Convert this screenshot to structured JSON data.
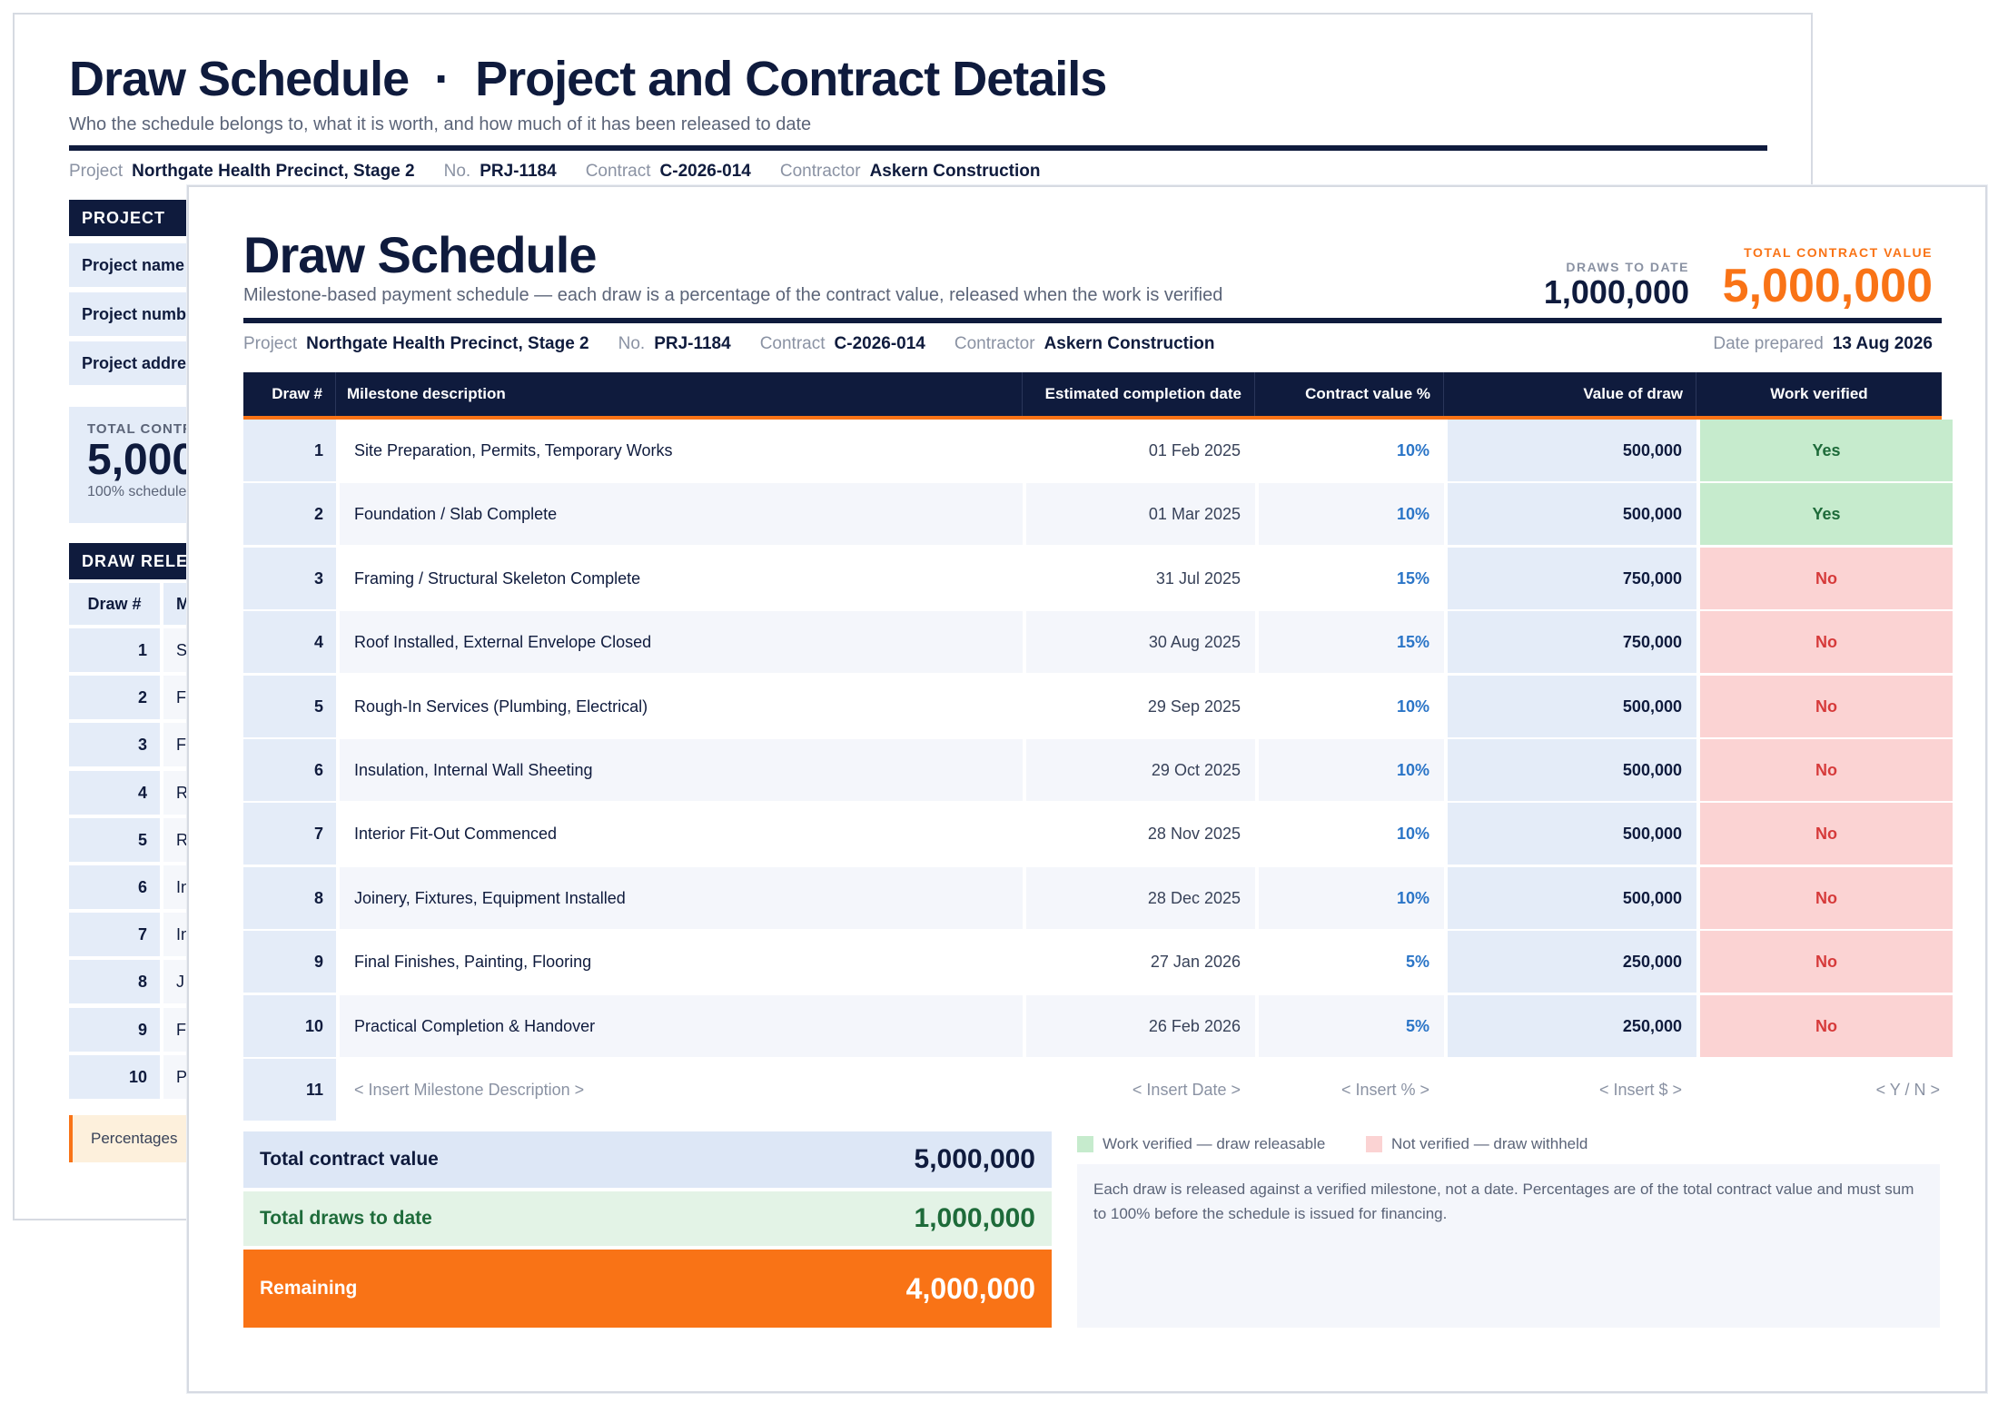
{
  "colors": {
    "navy": "#0f1b3d",
    "accent": "#f97316",
    "verified": "#c6ebcd",
    "not_verified": "#fbd3d3",
    "pct_blue": "#2b75c7"
  },
  "back": {
    "title": "Draw Schedule",
    "separator": "·",
    "title2": "Project and Contract Details",
    "subtitle": "Who the schedule belongs to, what it is worth, and how much of it has been released to date",
    "meta": {
      "project_label": "Project",
      "project_value": "Northgate Health Precinct, Stage 2",
      "no_label": "No.",
      "no_value": "PRJ-1184",
      "contract_label": "Contract",
      "contract_value": "C-2026-014",
      "contractor_label": "Contractor",
      "contractor_value": "Askern Construction"
    },
    "project_panel": {
      "heading": "PROJECT",
      "fields": [
        "Project name",
        "Project number",
        "Project address"
      ]
    },
    "total_card": {
      "label": "TOTAL CONTRACT VALUE",
      "value": "5,000,000",
      "sub": "100% scheduled"
    },
    "release_panel": {
      "heading": "DRAW RELEASE",
      "col_draw": "Draw #",
      "col_milestone": "Milestone",
      "rows": [
        {
          "n": "1",
          "m": "S"
        },
        {
          "n": "2",
          "m": "F"
        },
        {
          "n": "3",
          "m": "F"
        },
        {
          "n": "4",
          "m": "R"
        },
        {
          "n": "5",
          "m": "R"
        },
        {
          "n": "6",
          "m": "In"
        },
        {
          "n": "7",
          "m": "In"
        },
        {
          "n": "8",
          "m": "J"
        },
        {
          "n": "9",
          "m": "F"
        },
        {
          "n": "10",
          "m": "P"
        }
      ]
    },
    "note": "Percentages"
  },
  "front": {
    "title": "Draw Schedule",
    "subtitle": "Milestone-based payment schedule — each draw is a percentage of the contract value, released when the work is verified",
    "kpi_draws": {
      "label": "DRAWS TO DATE",
      "value": "1,000,000"
    },
    "kpi_total": {
      "label": "TOTAL CONTRACT VALUE",
      "value": "5,000,000"
    },
    "meta": {
      "project_label": "Project",
      "project_value": "Northgate Health Precinct, Stage 2",
      "no_label": "No.",
      "no_value": "PRJ-1184",
      "contract_label": "Contract",
      "contract_value": "C-2026-014",
      "contractor_label": "Contractor",
      "contractor_value": "Askern Construction",
      "date_label": "Date prepared",
      "date_value": "13 Aug 2026"
    },
    "columns": {
      "draw": "Draw #",
      "desc": "Milestone description",
      "date": "Estimated completion date",
      "pct": "Contract value %",
      "value": "Value of draw",
      "verified": "Work verified"
    },
    "rows": [
      {
        "n": "1",
        "desc": "Site Preparation, Permits, Temporary Works",
        "date": "01 Feb 2025",
        "pct": "10%",
        "value": "500,000",
        "verified": "Yes"
      },
      {
        "n": "2",
        "desc": "Foundation / Slab Complete",
        "date": "01 Mar 2025",
        "pct": "10%",
        "value": "500,000",
        "verified": "Yes"
      },
      {
        "n": "3",
        "desc": "Framing / Structural Skeleton Complete",
        "date": "31 Jul 2025",
        "pct": "15%",
        "value": "750,000",
        "verified": "No"
      },
      {
        "n": "4",
        "desc": "Roof Installed, External Envelope Closed",
        "date": "30 Aug 2025",
        "pct": "15%",
        "value": "750,000",
        "verified": "No"
      },
      {
        "n": "5",
        "desc": "Rough-In Services (Plumbing, Electrical)",
        "date": "29 Sep 2025",
        "pct": "10%",
        "value": "500,000",
        "verified": "No"
      },
      {
        "n": "6",
        "desc": "Insulation, Internal Wall Sheeting",
        "date": "29 Oct 2025",
        "pct": "10%",
        "value": "500,000",
        "verified": "No"
      },
      {
        "n": "7",
        "desc": "Interior Fit-Out Commenced",
        "date": "28 Nov 2025",
        "pct": "10%",
        "value": "500,000",
        "verified": "No"
      },
      {
        "n": "8",
        "desc": "Joinery, Fixtures, Equipment Installed",
        "date": "28 Dec 2025",
        "pct": "10%",
        "value": "500,000",
        "verified": "No"
      },
      {
        "n": "9",
        "desc": "Final Finishes, Painting, Flooring",
        "date": "27 Jan 2026",
        "pct": "5%",
        "value": "250,000",
        "verified": "No"
      },
      {
        "n": "10",
        "desc": "Practical Completion & Handover",
        "date": "26 Feb 2026",
        "pct": "5%",
        "value": "250,000",
        "verified": "No"
      }
    ],
    "placeholder": {
      "n": "11",
      "desc": "< Insert Milestone Description >",
      "date": "< Insert Date >",
      "pct": "< Insert % >",
      "value": "< Insert $ >",
      "verified": "< Y / N >"
    },
    "summary": {
      "total_label": "Total contract value",
      "total_value": "5,000,000",
      "draws_label": "Total draws to date",
      "draws_value": "1,000,000",
      "remaining_label": "Remaining",
      "remaining_value": "4,000,000"
    },
    "legend": {
      "yes": "Work verified — draw releasable",
      "no": "Not verified — draw withheld"
    },
    "note": "Each draw is released against a verified milestone, not a date. Percentages are of the total contract value and must sum to 100% before the schedule is issued for financing."
  }
}
